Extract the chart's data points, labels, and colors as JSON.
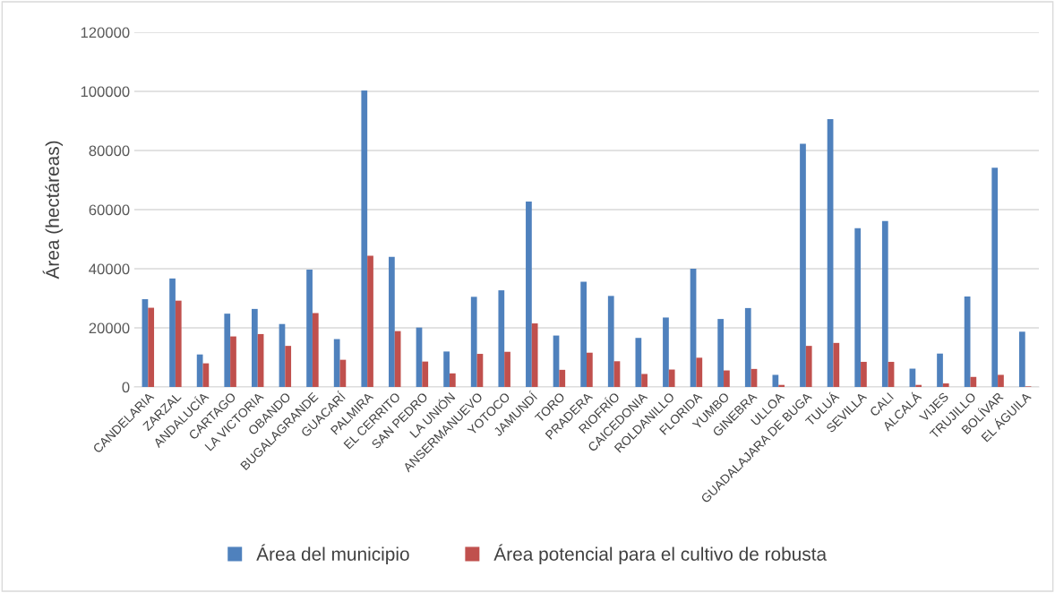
{
  "chart_data": {
    "type": "bar",
    "ylabel": "Área (hectáreas)",
    "categories": [
      "CANDELARIA",
      "ZARZAL",
      "ANDALUCÍA",
      "CARTAGO",
      "LA VICTORIA",
      "OBANDO",
      "BUGALAGRANDE",
      "GUACARÍ",
      "PALMIRA",
      "EL CERRITO",
      "SAN PEDRO",
      "LA UNIÓN",
      "ANSERMANUEVO",
      "YOTOCO",
      "JAMUNDÍ",
      "TORO",
      "PRADERA",
      "RIOFRÍO",
      "CAICEDONIA",
      "ROLDANILLO",
      "FLORIDA",
      "YUMBO",
      "GINEBRA",
      "ULLOA",
      "GUADALAJARA DE BUGA",
      "TULUÁ",
      "SEVILLA",
      "CALI",
      "ALCALÁ",
      "VIJES",
      "TRUJILLO",
      "BOLÍVAR",
      "EL ÁGUILA"
    ],
    "series": [
      {
        "name": "Área del municipio",
        "color": "#4f81bd",
        "values": [
          29700,
          36700,
          11000,
          24800,
          26400,
          21300,
          39700,
          16200,
          100300,
          44000,
          20100,
          12000,
          30500,
          32700,
          62700,
          17400,
          35600,
          30800,
          16600,
          23500,
          40000,
          23000,
          26700,
          4100,
          82300,
          90600,
          53700,
          56100,
          6200,
          11300,
          30600,
          74200,
          18700
        ]
      },
      {
        "name": "Área potencial para el cultivo de robusta",
        "color": "#c0504d",
        "values": [
          26800,
          29200,
          8000,
          17100,
          17900,
          13900,
          25000,
          9200,
          44400,
          18900,
          8600,
          4600,
          11200,
          11900,
          21500,
          5800,
          11600,
          8700,
          4400,
          5900,
          9900,
          5600,
          6100,
          700,
          13900,
          14900,
          8500,
          8500,
          700,
          1200,
          3400,
          4100,
          200
        ]
      }
    ],
    "ylim": [
      0,
      120000
    ],
    "yticks": [
      0,
      20000,
      40000,
      60000,
      80000,
      100000,
      120000
    ],
    "grid": "y",
    "legend": "bottom"
  }
}
